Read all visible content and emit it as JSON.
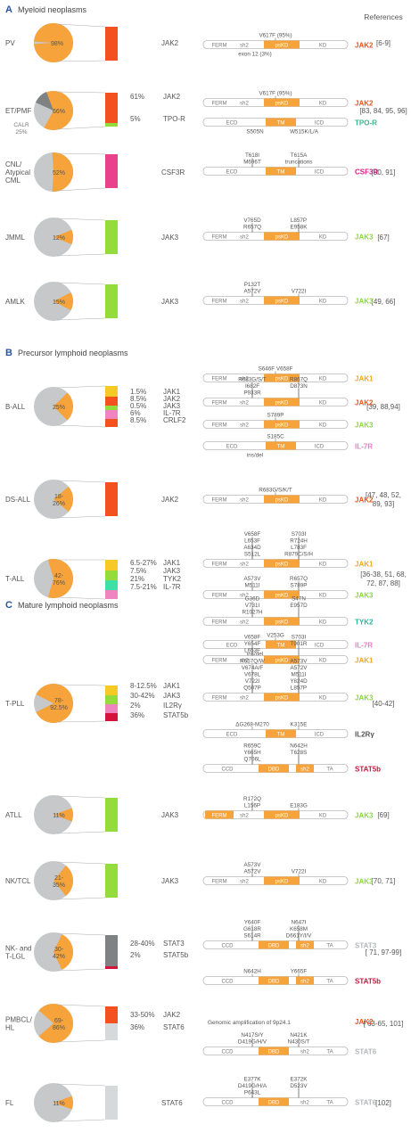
{
  "colors": {
    "orange": "#f5a33a",
    "grey": "#d6d8da",
    "darkgrey": "#7f8183",
    "red_orange": "#f4511e",
    "green": "#94dc3c",
    "magenta": "#e9418b",
    "crimson": "#d4143c",
    "yellow": "#f6c924",
    "pink": "#ee84c0",
    "teal": "#3fe0a6",
    "light_teal": "#a6ecd5",
    "ball_grey": "#c6c8ca",
    "gene_jak2": "#f4511e",
    "gene_tpor": "#36b98a",
    "gene_csf3r": "#e31b8c",
    "gene_jak3": "#8ed63a",
    "gene_jak1": "#f5a623",
    "gene_il7r": "#ec7cc0",
    "gene_tyk2": "#27b99a",
    "gene_stat": "#b4b8bc",
    "gene_stat5b": "#c8143c",
    "gene_il2rg": "#555555",
    "domain_fill": "#f5a33a",
    "domain_stroke": "#b9b9b9",
    "section_letter": "#27559e"
  },
  "header": {
    "references": "References"
  },
  "sections": [
    {
      "letter": "A",
      "title": "Myeloid neoplasms"
    },
    {
      "letter": "B",
      "title": "Precursor lymphoid neoplasms"
    },
    {
      "letter": "C",
      "title": "Mature lymphoid neoplasms"
    }
  ],
  "rows": [
    {
      "disease": "PV",
      "freq": "98%",
      "genes": [
        "JAK2"
      ],
      "pcts": [],
      "ref": "[6-9]",
      "bar_colors": [
        "red_orange"
      ],
      "proteins": [
        {
          "name": "JAK2",
          "color": "gene_jak2",
          "type": "jak",
          "labels": [
            "V617F (95%)"
          ],
          "below": [
            "exon 12 (3%)"
          ]
        }
      ]
    },
    {
      "disease": "ET/PMF",
      "freq": "66%",
      "extra": "CALR\n25%",
      "genes": [
        "JAK2",
        "TPO-R"
      ],
      "pcts": [
        "61%",
        "5%"
      ],
      "ref": "[83, 84, 95, 96]",
      "bar_colors": [
        "red_orange",
        "green"
      ],
      "proteins": [
        {
          "name": "JAK2",
          "color": "gene_jak2",
          "type": "jak",
          "labels": [
            "V617F (95%)"
          ],
          "below": []
        },
        {
          "name": "TPO-R",
          "color": "gene_tpor",
          "type": "rec",
          "labels": [],
          "below": [
            "S505N",
            "W515K/L/A"
          ]
        }
      ]
    },
    {
      "disease": "CNL/\nAtypical\nCML",
      "freq": "52%",
      "genes": [
        "CSF3R"
      ],
      "pcts": [],
      "ref": "[90, 91]",
      "bar_colors": [
        "magenta"
      ],
      "proteins": [
        {
          "name": "CSF3R",
          "color": "gene_csf3r",
          "type": "rec",
          "labels": [
            "T618I",
            "T615A",
            "M696T",
            "truncations"
          ],
          "below": []
        }
      ]
    },
    {
      "disease": "JMML",
      "freq": "12%",
      "genes": [
        "JAK3"
      ],
      "pcts": [],
      "ref": "[67]",
      "bar_colors": [
        "green"
      ],
      "proteins": [
        {
          "name": "JAK3",
          "color": "gene_jak3",
          "type": "jak",
          "labels": [
            "V765D",
            "L857P",
            "R657Q",
            "E958K"
          ],
          "below": []
        }
      ]
    },
    {
      "disease": "AMLK",
      "freq": "15%",
      "genes": [
        "JAK3"
      ],
      "pcts": [],
      "ref": "[49, 66]",
      "bar_colors": [
        "green"
      ],
      "proteins": [
        {
          "name": "JAK3",
          "color": "gene_jak3",
          "type": "jak",
          "labels": [
            "P132T",
            "A572V",
            "V722I"
          ],
          "below": []
        }
      ]
    },
    {
      "disease": "B-ALL",
      "freq": "25%",
      "genes": [
        "JAK1",
        "JAK2",
        "JAK3",
        "IL-7R",
        "CRLF2"
      ],
      "pcts": [
        "1.5%",
        "8.5%",
        "0.5%",
        "6%",
        "8.5%"
      ],
      "ref": "[39, 88,94]",
      "bar_colors": [
        "yellow",
        "red_orange",
        "green",
        "pink",
        "red_orange"
      ],
      "proteins": [
        {
          "name": "JAK1",
          "color": "gene_jak1",
          "type": "jak",
          "labels": [
            "S646F V658F"
          ],
          "below": []
        },
        {
          "name": "JAK2",
          "color": "gene_jak2",
          "type": "jak",
          "labels": [
            "R683G/S/T",
            "R867Q",
            "I682F",
            "D873N",
            "P933R"
          ],
          "below": []
        },
        {
          "name": "JAK3",
          "color": "gene_jak3",
          "type": "jak",
          "labels": [
            "S789P"
          ],
          "below": []
        },
        {
          "name": "IL-7R",
          "color": "gene_il7r",
          "type": "rec",
          "labels": [
            "S185C"
          ],
          "below": [
            "ins/del"
          ]
        }
      ]
    },
    {
      "disease": "DS-ALL",
      "freq": "18-\n26%",
      "genes": [
        "JAK2"
      ],
      "pcts": [],
      "ref": "[47, 48, 52,\n89, 93]",
      "bar_colors": [
        "red_orange"
      ],
      "proteins": [
        {
          "name": "JAK2",
          "color": "gene_jak2",
          "type": "jak",
          "labels": [
            "R683G/S/K/T"
          ],
          "below": []
        }
      ]
    },
    {
      "disease": "T-ALL",
      "freq": "42-\n76%",
      "genes": [
        "JAK1",
        "JAK3",
        "TYK2",
        "IL-7R"
      ],
      "pcts": [
        "6.5-27%",
        "7.5%",
        "21%",
        "7.5-21%"
      ],
      "ref": "[36-38, 51, 68,\n72, 87, 88]",
      "bar_colors": [
        "yellow",
        "green",
        "teal",
        "pink"
      ],
      "proteins": [
        {
          "name": "JAK1",
          "color": "gene_jak1",
          "type": "jak",
          "labels": [
            "V658F",
            "S703I",
            "L653F",
            "R724H",
            "A634D",
            "L783F",
            "S512L",
            "R879C/S/H"
          ],
          "below": []
        },
        {
          "name": "JAK3",
          "color": "gene_jak3",
          "type": "jak",
          "labels": [
            "A573V",
            "R657Q",
            "M511I",
            "S789P"
          ],
          "below": []
        },
        {
          "name": "TYK2",
          "color": "gene_tyk2",
          "type": "jak",
          "labels": [
            "G36D",
            "S47N",
            "V731I",
            "E957D",
            "R1027H"
          ],
          "below": []
        },
        {
          "name": "IL-7R",
          "color": "gene_il7r",
          "type": "rec",
          "labels": [
            "V253G"
          ],
          "below": [
            "ins/del"
          ]
        }
      ]
    },
    {
      "disease": "T-PLL",
      "freq": "78-\n92.5%",
      "genes": [
        "JAK1",
        "JAK3",
        "IL2Rγ",
        "STAT5b"
      ],
      "pcts": [
        "8-12.5%",
        "30-42%",
        "2%",
        "36%"
      ],
      "ref": "[40-42]",
      "bar_colors": [
        "yellow",
        "green",
        "pink",
        "crimson"
      ],
      "proteins": [
        {
          "name": "JAK1",
          "color": "gene_jak1",
          "type": "jak",
          "labels": [
            "V658F",
            "S703I",
            "Y654F",
            "T901R",
            "L653F"
          ],
          "below": []
        },
        {
          "name": "JAK3",
          "color": "gene_jak3",
          "type": "jak",
          "labels": [
            "R657Q/W",
            "A573V",
            "V674A/F",
            "A572V",
            "V678L",
            "M511I",
            "V722I",
            "Y824D",
            "Q507P",
            "L857P"
          ],
          "below": []
        },
        {
          "name": "IL2Rγ",
          "color": "gene_il2rg",
          "type": "rec",
          "labels": [
            "ΔG268-M270",
            "K315E"
          ],
          "below": []
        },
        {
          "name": "STAT5b",
          "color": "gene_stat5b",
          "type": "stat",
          "labels": [
            "R659C",
            "N642H",
            "Y665H",
            "T628S",
            "Q706L"
          ],
          "below": []
        }
      ]
    },
    {
      "disease": "ATLL",
      "freq": "11%",
      "genes": [
        "JAK3"
      ],
      "pcts": [],
      "ref": "[69]",
      "bar_colors": [
        "green"
      ],
      "proteins": [
        {
          "name": "JAK3",
          "color": "gene_jak3",
          "type": "jak2",
          "labels": [
            "R172Q",
            "L156P",
            "E183G"
          ],
          "below": []
        }
      ]
    },
    {
      "disease": "NK/TCL",
      "freq": "21-\n35%",
      "genes": [
        "JAK3"
      ],
      "pcts": [],
      "ref": "[70, 71]",
      "bar_colors": [
        "green"
      ],
      "proteins": [
        {
          "name": "JAK3",
          "color": "gene_jak3",
          "type": "jak",
          "labels": [
            "A573V",
            "A572V",
            "V722I"
          ],
          "below": []
        }
      ]
    },
    {
      "disease": "NK- and\nT-LGL",
      "freq": "30-\n42%",
      "genes": [
        "STAT3",
        "STAT5b"
      ],
      "pcts": [
        "28-40%",
        "2%"
      ],
      "ref": "[ 71, 97-99]",
      "bar_colors": [
        "darkgrey",
        "crimson"
      ],
      "proteins": [
        {
          "name": "STAT3",
          "color": "gene_stat",
          "type": "stat",
          "labels": [
            "Y640F",
            "N647I",
            "G618R",
            "K658M",
            "S614R",
            "D661Y/I/V"
          ],
          "below": []
        },
        {
          "name": "STAT5b",
          "color": "gene_stat5b",
          "type": "stat",
          "labels": [
            "N642H",
            "Y665F"
          ],
          "below": []
        }
      ]
    },
    {
      "disease": "PMBCL/\nHL",
      "freq": "69-\n86%",
      "genes": [
        "JAK2",
        "STAT6"
      ],
      "pcts": [
        "33-50%",
        "36%"
      ],
      "ref": "[ 63-65, 101]",
      "bar_colors": [
        "red_orange",
        "grey"
      ],
      "proteins": [
        {
          "name": "JAK2",
          "color": "gene_jak2",
          "type": "text",
          "labels": [
            "Genomic amplification of 9p24.1"
          ],
          "below": []
        },
        {
          "name": "STAT6",
          "color": "gene_stat",
          "type": "stat",
          "labels": [
            "N417S/Y",
            "N421K",
            "D419G/H/V",
            "N430S/T"
          ],
          "below": []
        }
      ]
    },
    {
      "disease": "FL",
      "freq": "11%",
      "genes": [
        "STAT6"
      ],
      "pcts": [],
      "ref": "[102]",
      "bar_colors": [
        "grey"
      ],
      "proteins": [
        {
          "name": "STAT6",
          "color": "gene_stat",
          "type": "stat",
          "labels": [
            "E377K",
            "E372K",
            "D419G/H/A",
            "D523V",
            "P643L"
          ],
          "below": []
        }
      ]
    }
  ],
  "domains": {
    "jak": [
      "FERM",
      "sh2",
      "psKD",
      "KD"
    ],
    "rec": [
      "ECD",
      "TM",
      "ICD"
    ],
    "stat": [
      "CCD",
      "DBD",
      "sh2",
      "TA"
    ]
  }
}
